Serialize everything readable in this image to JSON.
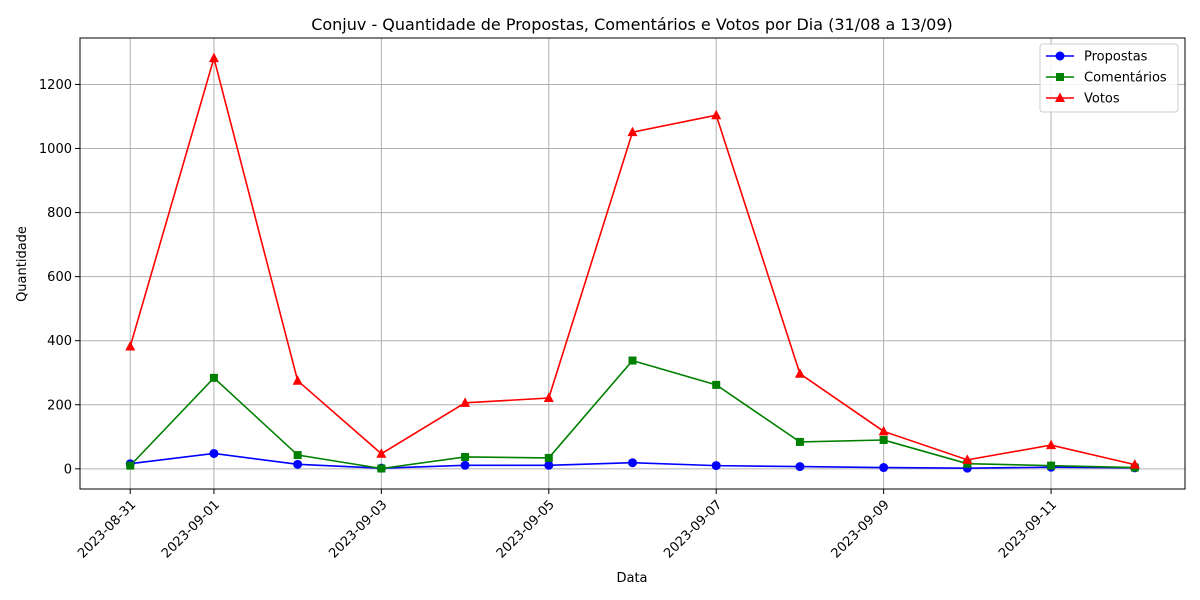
{
  "chart_data": {
    "type": "line",
    "title": "Conjuv - Quantidade de Propostas, Comentários e Votos por Dia (31/08 a 13/09)",
    "xlabel": "Data",
    "ylabel": "Quantidade",
    "x": [
      "2023-08-31",
      "2023-09-01",
      "2023-09-02",
      "2023-09-03",
      "2023-09-04",
      "2023-09-05",
      "2023-09-06",
      "2023-09-07",
      "2023-09-08",
      "2023-09-09",
      "2023-09-10",
      "2023-09-11",
      "2023-09-12"
    ],
    "x_ticks": [
      "2023-08-31",
      "2023-09-01",
      "2023-09-03",
      "2023-09-05",
      "2023-09-07",
      "2023-09-09",
      "2023-09-11"
    ],
    "ylim": [
      -63,
      1345
    ],
    "y_ticks": [
      0,
      200,
      400,
      600,
      800,
      1000,
      1200
    ],
    "grid": true,
    "legend_position": "top-right",
    "series": [
      {
        "name": "Propostas",
        "color": "#0000ff",
        "marker": "circle",
        "values": [
          16,
          48,
          14,
          2,
          11,
          11,
          19,
          10,
          7,
          4,
          2,
          5,
          3
        ]
      },
      {
        "name": "Comentários",
        "color": "#008000",
        "marker": "square",
        "values": [
          10,
          284,
          43,
          1,
          37,
          34,
          338,
          262,
          84,
          90,
          16,
          10,
          4
        ]
      },
      {
        "name": "Votos",
        "color": "#ff0000",
        "marker": "triangle",
        "values": [
          382,
          1282,
          275,
          47,
          206,
          221,
          1051,
          1104,
          297,
          117,
          28,
          74,
          13
        ]
      }
    ]
  }
}
